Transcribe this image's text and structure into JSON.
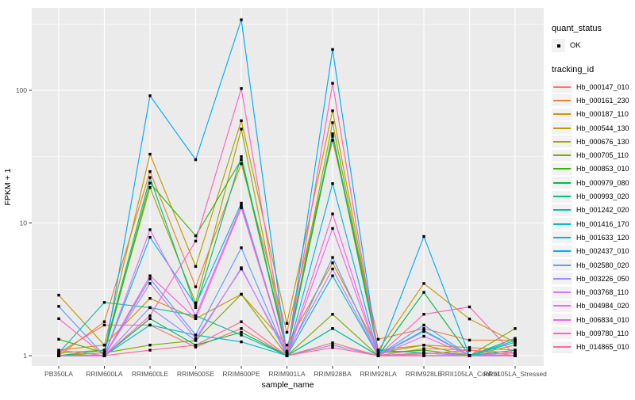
{
  "legend": {
    "quant_status": {
      "title": "quant_status",
      "items": [
        {
          "label": "OK",
          "marker": "black-square"
        }
      ]
    },
    "tracking_id": {
      "title": "tracking_id"
    }
  },
  "colors": {
    "panel_background": "#EBEBEB",
    "gridline": "#FFFFFF",
    "tick_label": "#4D4D4D",
    "axis_title": "#000000",
    "point": "#000000",
    "legend_key_background": "#F2F2F2"
  },
  "chart_data": {
    "type": "line",
    "title": "",
    "xlabel": "sample_name",
    "ylabel": "FPKM + 1",
    "y_scale": "log10",
    "y_ticks": [
      1,
      10,
      100
    ],
    "y_minor_gridlines": [
      3.1623,
      31.623,
      316.23
    ],
    "ylim": [
      1,
      420
    ],
    "grid": "white major and minor on gray panel",
    "legend_position": "right",
    "point_shape": "small-black-square",
    "categories": [
      "PB350LA",
      "RRIM600LA",
      "RRIM600LE",
      "RRIM600SE",
      "RRIM600PE",
      "RRIM901LA",
      "RRIM928BA",
      "RRIM928LA",
      "RRIM928LE",
      "RRII105LA_Control",
      "RRII105LA_Stressed"
    ],
    "series": [
      {
        "name": "Hb_000147_010",
        "color": "#F8766D",
        "values": [
          1.05,
          1.7,
          1.7,
          1.16,
          1.6,
          1.0,
          1.25,
          1.0,
          1.13,
          1.1,
          1.0
        ]
      },
      {
        "name": "Hb_000161_230",
        "color": "#EB8335",
        "values": [
          1.0,
          1.8,
          24.4,
          3.3,
          28,
          1.5,
          42,
          1.33,
          1.6,
          1.31,
          1.31
        ]
      },
      {
        "name": "Hb_000187_110",
        "color": "#D89000",
        "values": [
          1.1,
          1.2,
          2.7,
          1.9,
          2.9,
          1.2,
          5.0,
          1.1,
          1.2,
          1.15,
          1.1
        ]
      },
      {
        "name": "Hb_000544_130",
        "color": "#C09B00",
        "values": [
          2.86,
          1.2,
          33,
          4.7,
          59,
          1.75,
          70,
          1.1,
          3.5,
          1.89,
          1.26
        ]
      },
      {
        "name": "Hb_000676_130",
        "color": "#A3A500",
        "values": [
          1.05,
          1.1,
          18.5,
          2.5,
          51,
          1.05,
          57,
          1.05,
          1.2,
          1.0,
          1.2
        ]
      },
      {
        "name": "Hb_000705_110",
        "color": "#7CAE00",
        "values": [
          1.0,
          1.05,
          1.2,
          1.3,
          2.9,
          1.0,
          2.05,
          1.0,
          1.0,
          1.0,
          1.6
        ]
      },
      {
        "name": "Hb_000853_010",
        "color": "#39B600",
        "values": [
          1.33,
          1.05,
          20,
          8.0,
          30,
          1.05,
          45,
          1.05,
          1.1,
          1.0,
          1.05
        ]
      },
      {
        "name": "Hb_000979_080",
        "color": "#00BB4E",
        "values": [
          1.0,
          1.0,
          1.9,
          1.2,
          1.5,
          1.0,
          1.6,
          1.0,
          3.0,
          1.0,
          1.0
        ]
      },
      {
        "name": "Hb_000993_020",
        "color": "#00BF7D",
        "values": [
          1.0,
          1.1,
          22,
          2.3,
          31.6,
          1.08,
          47,
          1.1,
          1.05,
          1.0,
          1.1
        ]
      },
      {
        "name": "Hb_001242_020",
        "color": "#00C1A3",
        "values": [
          1.05,
          2.52,
          2.3,
          2.0,
          1.43,
          1.0,
          1.6,
          1.0,
          1.0,
          1.0,
          1.35
        ]
      },
      {
        "name": "Hb_001416_170",
        "color": "#00BFC4",
        "values": [
          1.0,
          1.0,
          1.7,
          1.43,
          1.27,
          1.0,
          4.0,
          1.0,
          1.05,
          1.0,
          1.3
        ]
      },
      {
        "name": "Hb_001633_120",
        "color": "#00B8E5",
        "values": [
          1.0,
          1.0,
          7.8,
          2.4,
          14.1,
          1.0,
          19.8,
          1.0,
          1.55,
          1.0,
          1.26
        ]
      },
      {
        "name": "Hb_002437_010",
        "color": "#00ACFC",
        "values": [
          1.0,
          1.0,
          91,
          30,
          340,
          1.0,
          203,
          1.0,
          7.9,
          1.0,
          1.0
        ]
      },
      {
        "name": "Hb_002580_020",
        "color": "#619CFF",
        "values": [
          2.35,
          1.0,
          3.8,
          1.43,
          6.5,
          1.0,
          5.5,
          1.0,
          1.7,
          1.0,
          1.0
        ]
      },
      {
        "name": "Hb_003226_050",
        "color": "#9590FF",
        "values": [
          1.0,
          1.0,
          2.3,
          1.3,
          4.6,
          1.0,
          1.2,
          1.0,
          1.52,
          1.0,
          1.0
        ]
      },
      {
        "name": "Hb_003768_110",
        "color": "#C77CFF",
        "values": [
          1.0,
          1.0,
          3.5,
          1.35,
          4.5,
          1.05,
          4.5,
          1.0,
          1.05,
          1.0,
          1.05
        ]
      },
      {
        "name": "Hb_004984_020",
        "color": "#E76BF3",
        "values": [
          1.0,
          1.0,
          8.9,
          2.0,
          13.5,
          1.0,
          9.1,
          1.0,
          1.4,
          1.0,
          1.0
        ]
      },
      {
        "name": "Hb_006834_010",
        "color": "#FA62DB",
        "values": [
          1.0,
          1.0,
          4.0,
          1.9,
          13.0,
          1.0,
          11.7,
          1.0,
          1.0,
          1.0,
          1.0
        ]
      },
      {
        "name": "Hb_009780_110",
        "color": "#FF62BC",
        "values": [
          1.9,
          1.0,
          2.0,
          7.3,
          103,
          1.0,
          113,
          1.0,
          2.05,
          2.33,
          1.0
        ]
      },
      {
        "name": "Hb_014865_010",
        "color": "#FF6A98",
        "values": [
          1.1,
          1.0,
          1.1,
          1.2,
          1.8,
          1.0,
          1.15,
          1.0,
          1.03,
          1.1,
          1.05
        ]
      }
    ]
  }
}
